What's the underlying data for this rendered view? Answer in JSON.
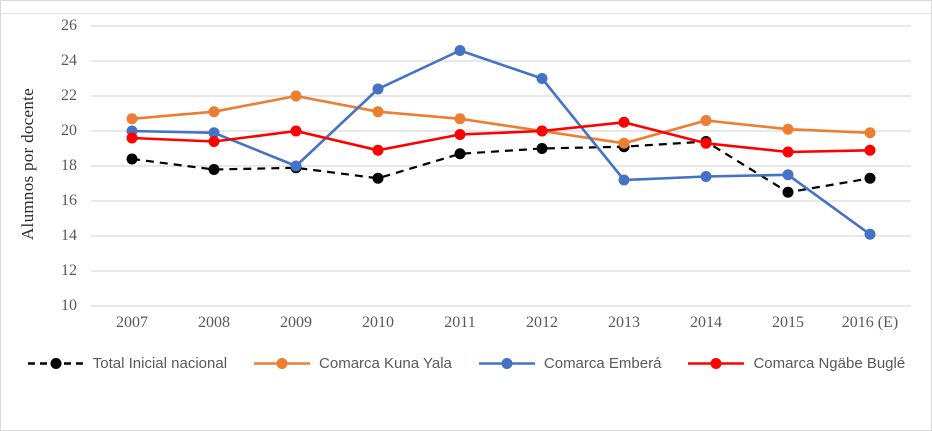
{
  "chart_data": {
    "type": "line",
    "title": "",
    "xlabel": "",
    "ylabel": "Alumnos por docente",
    "ylim": [
      10,
      26
    ],
    "y_ticks": [
      26,
      24,
      22,
      20,
      18,
      16,
      14,
      12,
      10
    ],
    "grid": "horizontal",
    "legend_position": "bottom",
    "categories": [
      "2007",
      "2008",
      "2009",
      "2010",
      "2011",
      "2012",
      "2013",
      "2014",
      "2015",
      "2016 (E)"
    ],
    "series": [
      {
        "name": "Total Inicial nacional",
        "color": "#000000",
        "line_style": "dashed",
        "values": [
          18.4,
          17.8,
          17.9,
          17.3,
          18.7,
          19.0,
          19.1,
          19.4,
          16.5,
          17.3
        ]
      },
      {
        "name": "Comarca Kuna Yala",
        "color": "#ED7D31",
        "line_style": "solid",
        "values": [
          20.7,
          21.1,
          22.0,
          21.1,
          20.7,
          20.0,
          19.3,
          20.6,
          20.1,
          19.9
        ]
      },
      {
        "name": "Comarca Emberá",
        "color": "#4472C4",
        "line_style": "solid",
        "values": [
          20.0,
          19.9,
          18.0,
          22.4,
          24.6,
          23.0,
          17.2,
          17.4,
          17.5,
          14.1
        ]
      },
      {
        "name": "Comarca Ngäbe Buglé",
        "color": "#FF0000",
        "line_style": "solid",
        "values": [
          19.6,
          19.4,
          20.0,
          18.9,
          19.8,
          20.0,
          20.5,
          19.3,
          18.8,
          18.9
        ]
      }
    ],
    "colors": {
      "gridline": "#d9d9d9",
      "axis_text": "#595959",
      "frame_border": "#d9d9d9"
    }
  }
}
